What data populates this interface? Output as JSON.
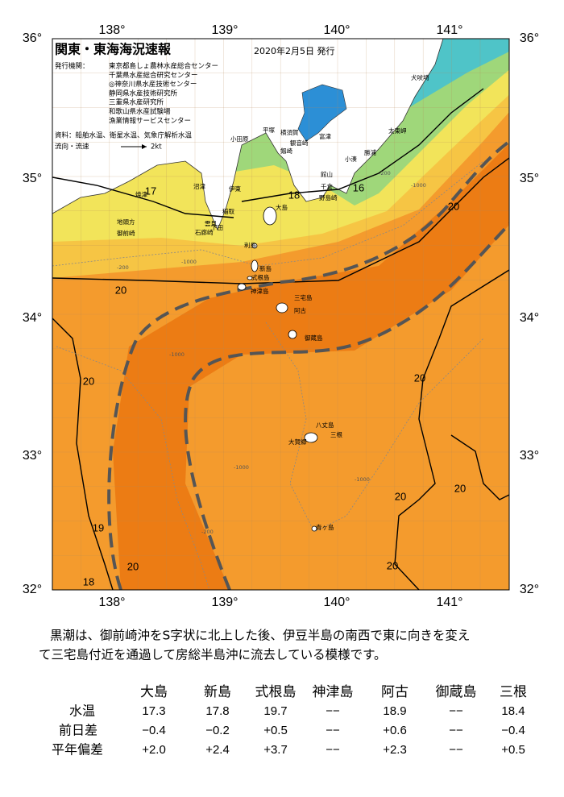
{
  "header": {
    "title": "関東・東海海況速報",
    "date": "2020年2月5日 発行"
  },
  "issuers": {
    "label": "発行機関：",
    "names": [
      "東京都島しょ農林水産総合センター",
      "千葉県水産総合研究センター",
      "◎神奈川県水産技術センター",
      "静岡県水産技術研究所",
      "三重県水産研究所",
      "和歌山県水産試験場",
      "漁業情報サービスセンター"
    ]
  },
  "source": "資料：船舶水温、衛星水温、気象庁解析水温",
  "legend": {
    "label": "流向・流速",
    "speed": "2kt"
  },
  "map": {
    "lon_labels": [
      "138°",
      "139°",
      "140°",
      "141°"
    ],
    "lat_labels": [
      "36°",
      "35°",
      "34°",
      "33°",
      "32°"
    ],
    "places": [
      "犬吠埼",
      "太東岬",
      "勝浦",
      "小湊",
      "館山",
      "千倉",
      "野島崎",
      "富津",
      "横須賀",
      "観音崎",
      "剱崎",
      "平塚",
      "小田原",
      "伊東",
      "沼津",
      "焼津",
      "稲取",
      "下田",
      "雲見",
      "石廊崎",
      "地頭方",
      "御前崎",
      "大島",
      "利島",
      "新島",
      "式根島",
      "神津島",
      "三宅島",
      "阿古",
      "御蔵島",
      "八丈島",
      "三根",
      "大賀郷",
      "青ヶ島"
    ],
    "isotherm_labels": [
      "17",
      "18",
      "16",
      "20",
      "20",
      "20",
      "20",
      "20",
      "20",
      "20",
      "20",
      "19",
      "18"
    ],
    "depth_labels": [
      "-200",
      "-1000",
      "-200",
      "-1000",
      "-1000",
      "-1000",
      "-1000",
      "-200"
    ]
  },
  "description": [
    "黒潮は、御前崎沖をS字状に北上した後、伊豆半島の南西で東に向きを変え",
    "て三宅島付近を通過して房総半島沖に流去している模様です。"
  ],
  "table": {
    "columns": [
      "大島",
      "新島",
      "式根島",
      "神津島",
      "阿古",
      "御蔵島",
      "三根"
    ],
    "rows": [
      {
        "label": "水温",
        "cells": [
          "17.3",
          "17.8",
          "19.7",
          "−−",
          "18.9",
          "−−",
          "18.4"
        ]
      },
      {
        "label": "前日差",
        "cells": [
          "−0.4",
          "−0.2",
          "+0.5",
          "−−",
          "+0.6",
          "−−",
          "−0.4"
        ]
      },
      {
        "label": "平年偏差",
        "cells": [
          "+2.0",
          "+2.4",
          "+3.7",
          "−−",
          "+2.3",
          "−−",
          "+0.5"
        ]
      }
    ]
  }
}
